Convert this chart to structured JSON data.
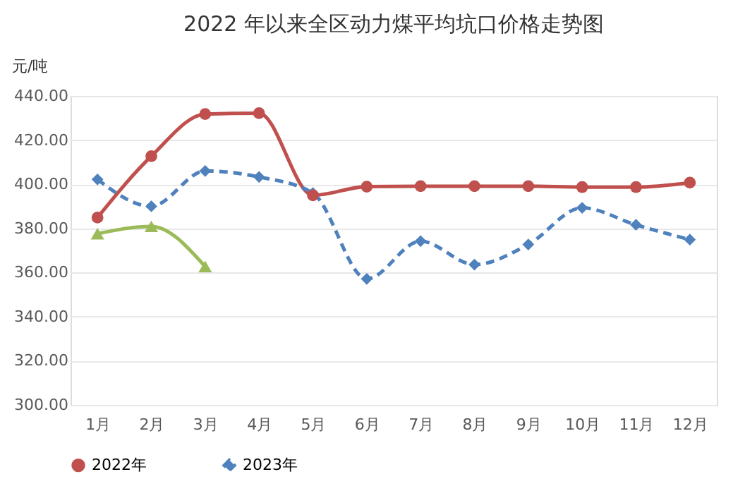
{
  "chart_data": {
    "type": "line",
    "title": "2022 年以来全区动力煤平均坑口价格走势图",
    "ylabel": "元/吨",
    "categories": [
      "1月",
      "2月",
      "3月",
      "4月",
      "5月",
      "6月",
      "7月",
      "8月",
      "9月",
      "10月",
      "11月",
      "12月"
    ],
    "series": [
      {
        "name": "2022年",
        "color": "#c0504d",
        "marker": "circle",
        "line_style": "solid",
        "values": [
          384.9,
          412.7,
          431.8,
          432.2,
          395,
          398.9,
          399.1,
          399.1,
          399.1,
          398.7,
          398.7,
          400.7
        ]
      },
      {
        "name": "2023年",
        "color": "#4f81bd",
        "marker": "diamond",
        "line_style": "dashed",
        "values": [
          402.2,
          390,
          406,
          403.3,
          396,
          357.1,
          374.2,
          363.6,
          372.7,
          389.3,
          381.6,
          374.9
        ]
      },
      {
        "color": "#9bbb59",
        "marker": "triangle",
        "line_style": "solid",
        "values": [
          377.6,
          380.9,
          362.7,
          null,
          null,
          null,
          null,
          null,
          null,
          null,
          null,
          null
        ]
      }
    ],
    "ylim": [
      300,
      440
    ],
    "yticks": [
      {
        "value": 300,
        "label": "300.00"
      },
      {
        "value": 320,
        "label": "320.00"
      },
      {
        "value": 340,
        "label": "340.00"
      },
      {
        "value": 360,
        "label": "360.00"
      },
      {
        "value": 380,
        "label": "380.00"
      },
      {
        "value": 400,
        "label": "400.00"
      },
      {
        "value": 420,
        "label": "420.00"
      },
      {
        "value": 440,
        "label": "440.00"
      }
    ],
    "grid": "y",
    "legend": "bottom"
  }
}
